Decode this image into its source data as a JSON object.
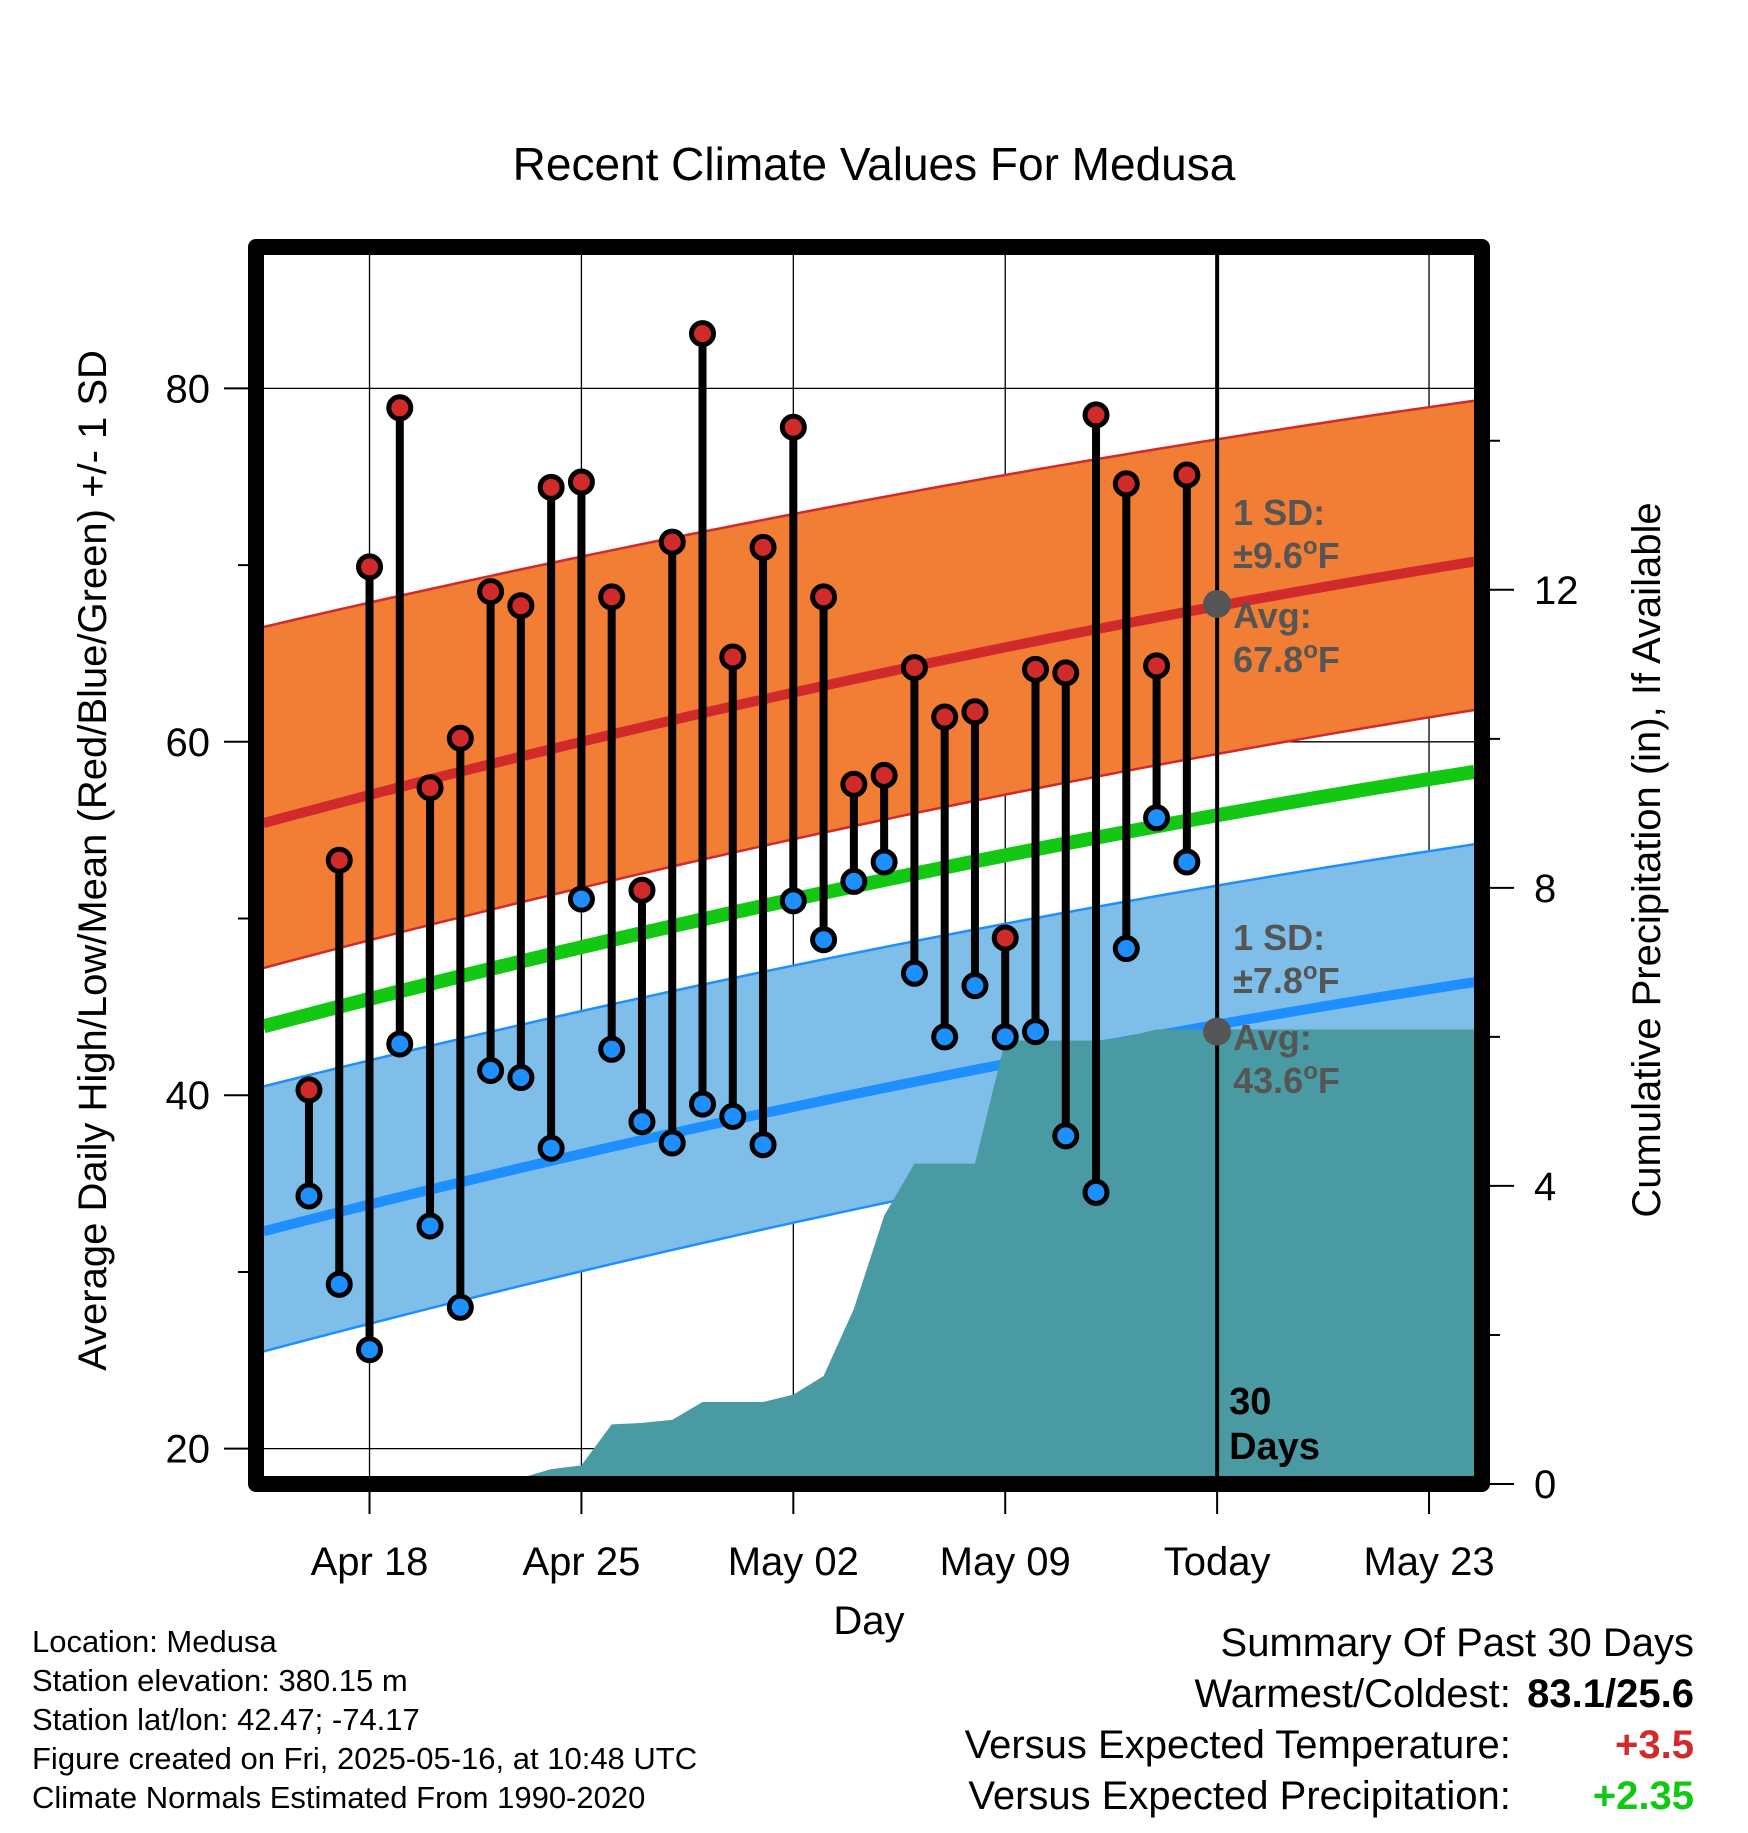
{
  "chart_data": {
    "type": "line",
    "title": "Recent Climate Values For Medusa",
    "xlabel": "Day",
    "ylabel_left": "Average Daily High/Low/Mean (Red/Blue/Green) +/- 1 SD",
    "ylabel_right": "Cumulative Precipitation (in), If Available",
    "x_ticks": [
      {
        "day": 3,
        "label": "Apr 18"
      },
      {
        "day": 10,
        "label": "Apr 25"
      },
      {
        "day": 17,
        "label": "May 02"
      },
      {
        "day": 24,
        "label": "May 09"
      },
      {
        "day": 31,
        "label": "Today"
      },
      {
        "day": 38,
        "label": "May 23"
      }
    ],
    "xlim": [
      -0.75,
      39.75
    ],
    "ylim_left": [
      18,
      88
    ],
    "y_ticks_left": [
      20,
      40,
      60,
      80
    ],
    "ylim_right": [
      0,
      16.6
    ],
    "y_ticks_right": [
      0,
      4,
      8,
      12
    ],
    "grid": true,
    "daily": [
      {
        "day": 1,
        "high": 40.3,
        "low": 34.3
      },
      {
        "day": 2,
        "high": 53.3,
        "low": 29.3
      },
      {
        "day": 3,
        "high": 69.9,
        "low": 25.6
      },
      {
        "day": 4,
        "high": 78.9,
        "low": 42.9
      },
      {
        "day": 5,
        "high": 57.4,
        "low": 32.6
      },
      {
        "day": 6,
        "high": 60.2,
        "low": 28.0
      },
      {
        "day": 7,
        "high": 68.5,
        "low": 41.4
      },
      {
        "day": 8,
        "high": 67.7,
        "low": 41.0
      },
      {
        "day": 9,
        "high": 74.4,
        "low": 37.0
      },
      {
        "day": 10,
        "high": 74.7,
        "low": 51.1
      },
      {
        "day": 11,
        "high": 68.2,
        "low": 42.6
      },
      {
        "day": 12,
        "high": 51.6,
        "low": 38.5
      },
      {
        "day": 13,
        "high": 71.3,
        "low": 37.3
      },
      {
        "day": 14,
        "high": 83.1,
        "low": 39.5
      },
      {
        "day": 15,
        "high": 64.8,
        "low": 38.8
      },
      {
        "day": 16,
        "high": 71.0,
        "low": 37.2
      },
      {
        "day": 17,
        "high": 77.8,
        "low": 51.0
      },
      {
        "day": 18,
        "high": 68.2,
        "low": 48.8
      },
      {
        "day": 19,
        "high": 57.6,
        "low": 52.1
      },
      {
        "day": 20,
        "high": 58.1,
        "low": 53.2
      },
      {
        "day": 21,
        "high": 64.2,
        "low": 46.9
      },
      {
        "day": 22,
        "high": 61.4,
        "low": 43.3
      },
      {
        "day": 23,
        "high": 61.7,
        "low": 46.2
      },
      {
        "day": 24,
        "high": 48.9,
        "low": 43.3
      },
      {
        "day": 25,
        "high": 64.1,
        "low": 43.6
      },
      {
        "day": 26,
        "high": 63.9,
        "low": 37.7
      },
      {
        "day": 27,
        "high": 78.5,
        "low": 34.5
      },
      {
        "day": 28,
        "high": 74.6,
        "low": 48.3
      },
      {
        "day": 29,
        "high": 64.3,
        "low": 55.7
      },
      {
        "day": 30,
        "high": 75.1,
        "low": 53.2
      }
    ],
    "normals": {
      "days": [
        -0.5,
        39.5
      ],
      "avg_high": [
        55.4,
        70.2
      ],
      "avg_low": [
        32.3,
        46.4
      ],
      "avg_mean": [
        43.9,
        58.3
      ],
      "high_upper": [
        66.5,
        79.3
      ],
      "high_lower": [
        47.2,
        61.8
      ],
      "low_upper": [
        40.5,
        54.2
      ],
      "low_lower": [
        25.5,
        40.1
      ]
    },
    "precip_cumulative": [
      {
        "day": -0.5,
        "value": 0.0
      },
      {
        "day": 4,
        "value": 0.0
      },
      {
        "day": 5,
        "value": 0.04
      },
      {
        "day": 8,
        "value": 0.08
      },
      {
        "day": 9,
        "value": 0.2
      },
      {
        "day": 10,
        "value": 0.25
      },
      {
        "day": 11,
        "value": 0.8
      },
      {
        "day": 12,
        "value": 0.82
      },
      {
        "day": 13,
        "value": 0.86
      },
      {
        "day": 14,
        "value": 1.1
      },
      {
        "day": 15,
        "value": 1.1
      },
      {
        "day": 16,
        "value": 1.1
      },
      {
        "day": 17,
        "value": 1.2
      },
      {
        "day": 18,
        "value": 1.45
      },
      {
        "day": 19,
        "value": 2.35
      },
      {
        "day": 20,
        "value": 3.6
      },
      {
        "day": 21,
        "value": 4.3
      },
      {
        "day": 22,
        "value": 4.3
      },
      {
        "day": 23,
        "value": 4.3
      },
      {
        "day": 24,
        "value": 5.95
      },
      {
        "day": 25,
        "value": 5.95
      },
      {
        "day": 26,
        "value": 5.95
      },
      {
        "day": 27,
        "value": 5.95
      },
      {
        "day": 28,
        "value": 6.0
      },
      {
        "day": 29,
        "value": 6.1
      },
      {
        "day": 30,
        "value": 6.1
      },
      {
        "day": 39.5,
        "value": 6.1
      }
    ],
    "today_day": 31,
    "today_label_line1": "30",
    "today_label_line2": "Days",
    "high_sd_label": "1 SD:",
    "high_sd_value": "±9.6",
    "high_avg_label": "Avg:",
    "high_avg_value": "67.8",
    "low_sd_label": "1 SD:",
    "low_sd_value": "±7.8",
    "low_avg_label": "Avg:",
    "low_avg_value": "43.6",
    "unit_degree": "o",
    "unit_f": "F",
    "today_high_avg": 67.8,
    "today_low_avg": 43.6,
    "colors": {
      "high_band": "#f27d34",
      "high_line": "#d12a2a",
      "low_band": "#7fbee8",
      "low_line": "#1e8fff",
      "mean_line": "#13c813",
      "precip": "#4a9aa3",
      "high_dot": "#d12a2a",
      "low_dot": "#1e8fff",
      "annot": "#555555"
    }
  },
  "info": {
    "location": "Location: Medusa",
    "elevation": "Station elevation: 380.15 m",
    "latlon": "Station lat/lon: 42.47; -74.17",
    "created": "Figure created on Fri, 2025-05-16, at 10:48 UTC",
    "normals": "Climate Normals Estimated From 1990-2020"
  },
  "summary": {
    "heading": "Summary Of Past 30 Days",
    "warmest_label": "Warmest/Coldest:",
    "warmest_value": "83.1/25.6",
    "temp_label": "Versus Expected Temperature:",
    "temp_value": "+3.5",
    "temp_color": "#d12a2a",
    "precip_label": "Versus Expected Precipitation:",
    "precip_value": "+2.35",
    "precip_color": "#13c813"
  }
}
